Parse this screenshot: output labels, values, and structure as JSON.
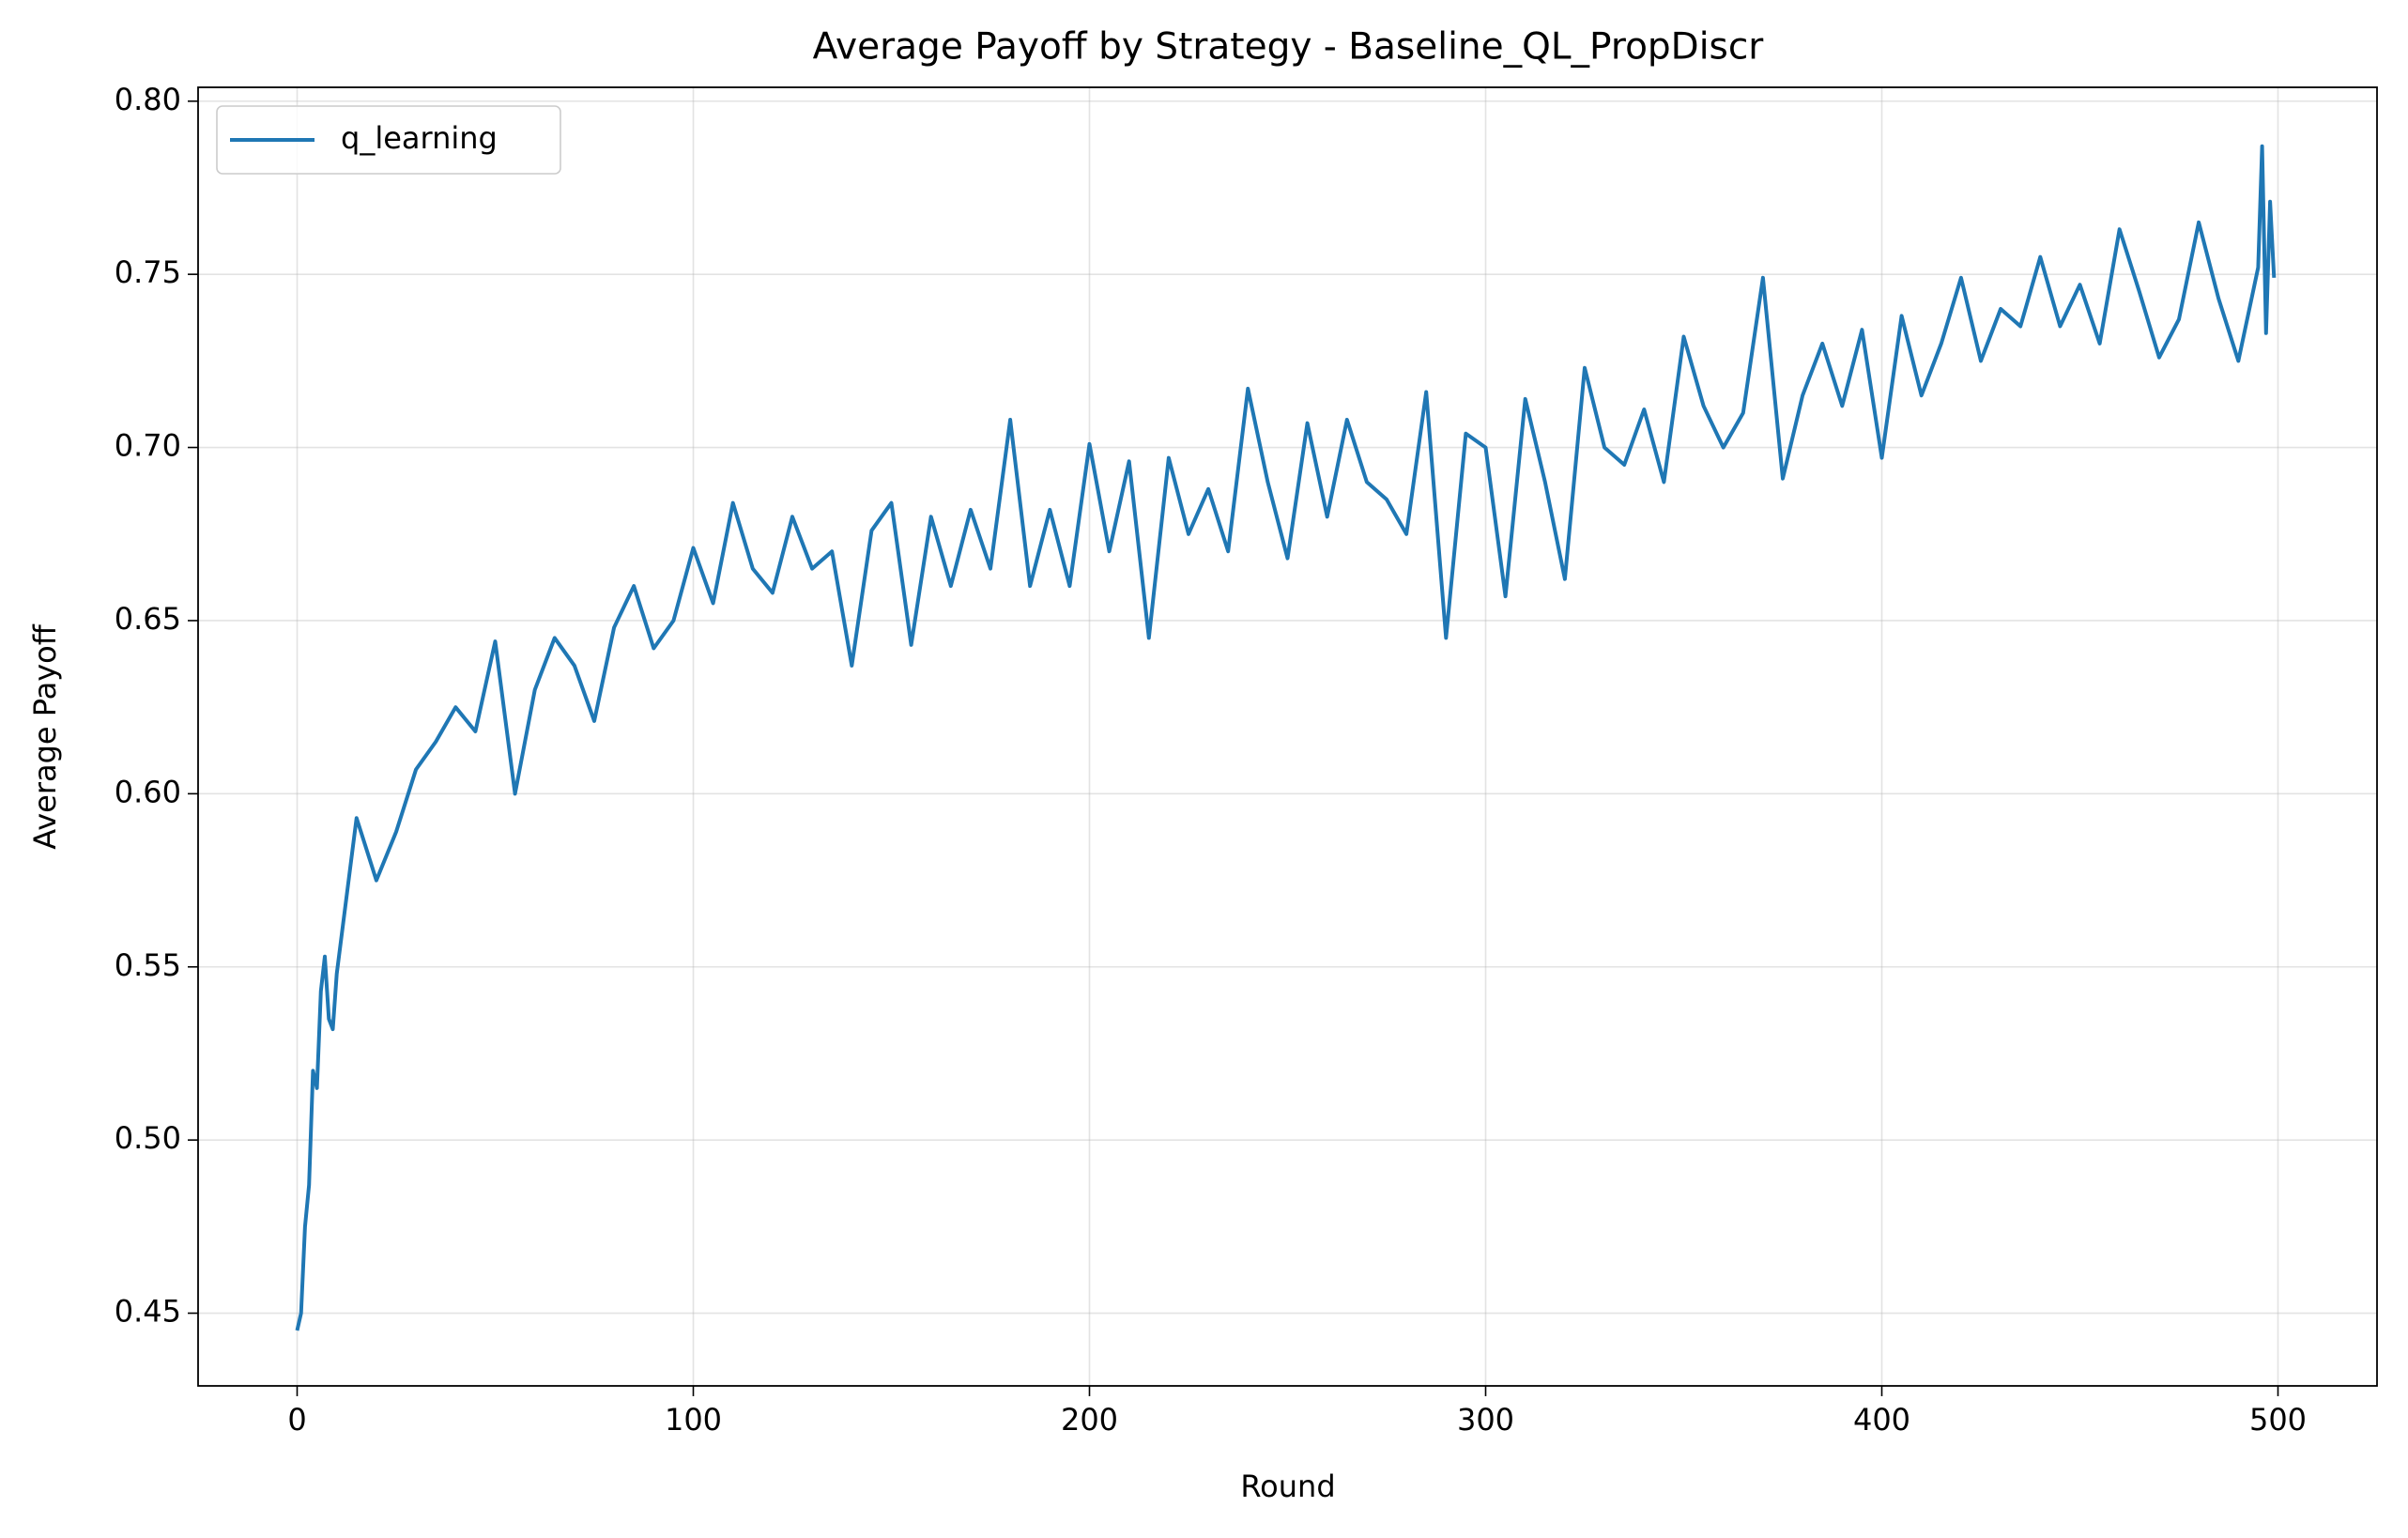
{
  "chart_data": {
    "type": "line",
    "title": "Average Payoff by Strategy - Baseline_QL_PropDiscr",
    "xlabel": "Round",
    "ylabel": "Average Payoff",
    "x": [
      0,
      1,
      2,
      3,
      4,
      5,
      6,
      7,
      8,
      9,
      10,
      15,
      20,
      25,
      30,
      35,
      40,
      45,
      50,
      55,
      60,
      65,
      70,
      75,
      80,
      85,
      90,
      95,
      100,
      105,
      110,
      115,
      120,
      125,
      130,
      135,
      140,
      145,
      150,
      155,
      160,
      165,
      170,
      175,
      180,
      185,
      190,
      195,
      200,
      205,
      210,
      215,
      220,
      225,
      230,
      235,
      240,
      245,
      250,
      255,
      260,
      265,
      270,
      275,
      280,
      285,
      290,
      295,
      300,
      305,
      310,
      315,
      320,
      325,
      330,
      335,
      340,
      345,
      350,
      355,
      360,
      365,
      370,
      375,
      380,
      385,
      390,
      395,
      400,
      405,
      410,
      415,
      420,
      425,
      430,
      435,
      440,
      445,
      450,
      455,
      460,
      465,
      470,
      475,
      480,
      485,
      490,
      495,
      496,
      497,
      498,
      499
    ],
    "series": [
      {
        "name": "q_learning",
        "color": "#1f77b4",
        "values": [
          0.445,
          0.45,
          0.475,
          0.487,
          0.52,
          0.515,
          0.543,
          0.553,
          0.535,
          0.532,
          0.548,
          0.593,
          0.575,
          0.589,
          0.607,
          0.615,
          0.625,
          0.618,
          0.644,
          0.6,
          0.63,
          0.645,
          0.637,
          0.621,
          0.648,
          0.66,
          0.642,
          0.65,
          0.671,
          0.655,
          0.684,
          0.665,
          0.658,
          0.68,
          0.665,
          0.67,
          0.637,
          0.676,
          0.684,
          0.643,
          0.68,
          0.66,
          0.682,
          0.665,
          0.708,
          0.66,
          0.682,
          0.66,
          0.701,
          0.67,
          0.696,
          0.645,
          0.697,
          0.675,
          0.688,
          0.67,
          0.717,
          0.69,
          0.668,
          0.707,
          0.68,
          0.708,
          0.69,
          0.685,
          0.675,
          0.716,
          0.645,
          0.704,
          0.7,
          0.657,
          0.714,
          0.69,
          0.662,
          0.723,
          0.7,
          0.695,
          0.711,
          0.69,
          0.732,
          0.712,
          0.7,
          0.71,
          0.749,
          0.691,
          0.715,
          0.73,
          0.712,
          0.734,
          0.697,
          0.738,
          0.715,
          0.73,
          0.749,
          0.725,
          0.74,
          0.735,
          0.755,
          0.735,
          0.747,
          0.73,
          0.763,
          0.745,
          0.726,
          0.737,
          0.765,
          0.743,
          0.725,
          0.752,
          0.787,
          0.733,
          0.771,
          0.749
        ]
      }
    ],
    "xlim": [
      -25,
      525
    ],
    "ylim": [
      0.429,
      0.804
    ],
    "xticks": [
      0,
      100,
      200,
      300,
      400,
      500
    ],
    "yticks": [
      0.45,
      {
        "value": 0.5,
        "label": "0.50"
      },
      0.55,
      {
        "value": 0.6,
        "label": "0.60"
      },
      0.65,
      {
        "value": 0.7,
        "label": "0.70"
      },
      0.75,
      {
        "value": 0.8,
        "label": "0.80"
      }
    ],
    "grid": true,
    "legend": "upper left"
  }
}
